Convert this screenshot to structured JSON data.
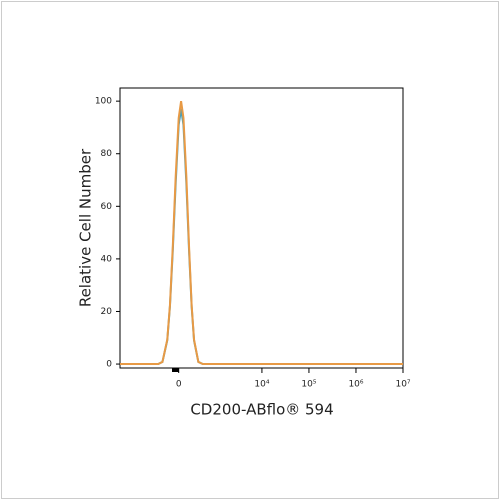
{
  "chart_data": {
    "type": "histogram-overlay",
    "xlabel": "CD200-ABflo® 594",
    "ylabel": "Relative Cell Number",
    "xscale": "biexponential",
    "xlim": [
      -3000,
      10000000
    ],
    "ylim": [
      -1.5,
      105
    ],
    "xticks": [
      0,
      {
        "value": 10000,
        "label": "10⁴"
      },
      {
        "value": 100000,
        "label": "10⁵"
      },
      {
        "value": 1000000,
        "label": "10⁶"
      },
      {
        "value": 10000000,
        "label": "10⁷"
      }
    ],
    "yticks": [
      0,
      20,
      40,
      60,
      80,
      100
    ],
    "x": [
      -3000,
      -400,
      -300,
      -200,
      -150,
      -100,
      -50,
      0,
      40,
      80,
      130,
      180,
      230,
      280,
      380,
      500,
      10000000
    ],
    "series": [
      {
        "color": "#4a9fb5",
        "values": [
          0,
          0,
          0.8,
          9,
          22,
          43,
          69,
          91,
          97,
          91,
          69,
          43,
          22,
          9,
          0.8,
          0,
          0
        ]
      },
      {
        "color": "#e89a45",
        "values": [
          0,
          0,
          0.8,
          9.3,
          22.4,
          44.6,
          71.5,
          93.6,
          100,
          93.6,
          71.5,
          44.6,
          22.4,
          9.3,
          0.8,
          0,
          0
        ]
      }
    ]
  }
}
